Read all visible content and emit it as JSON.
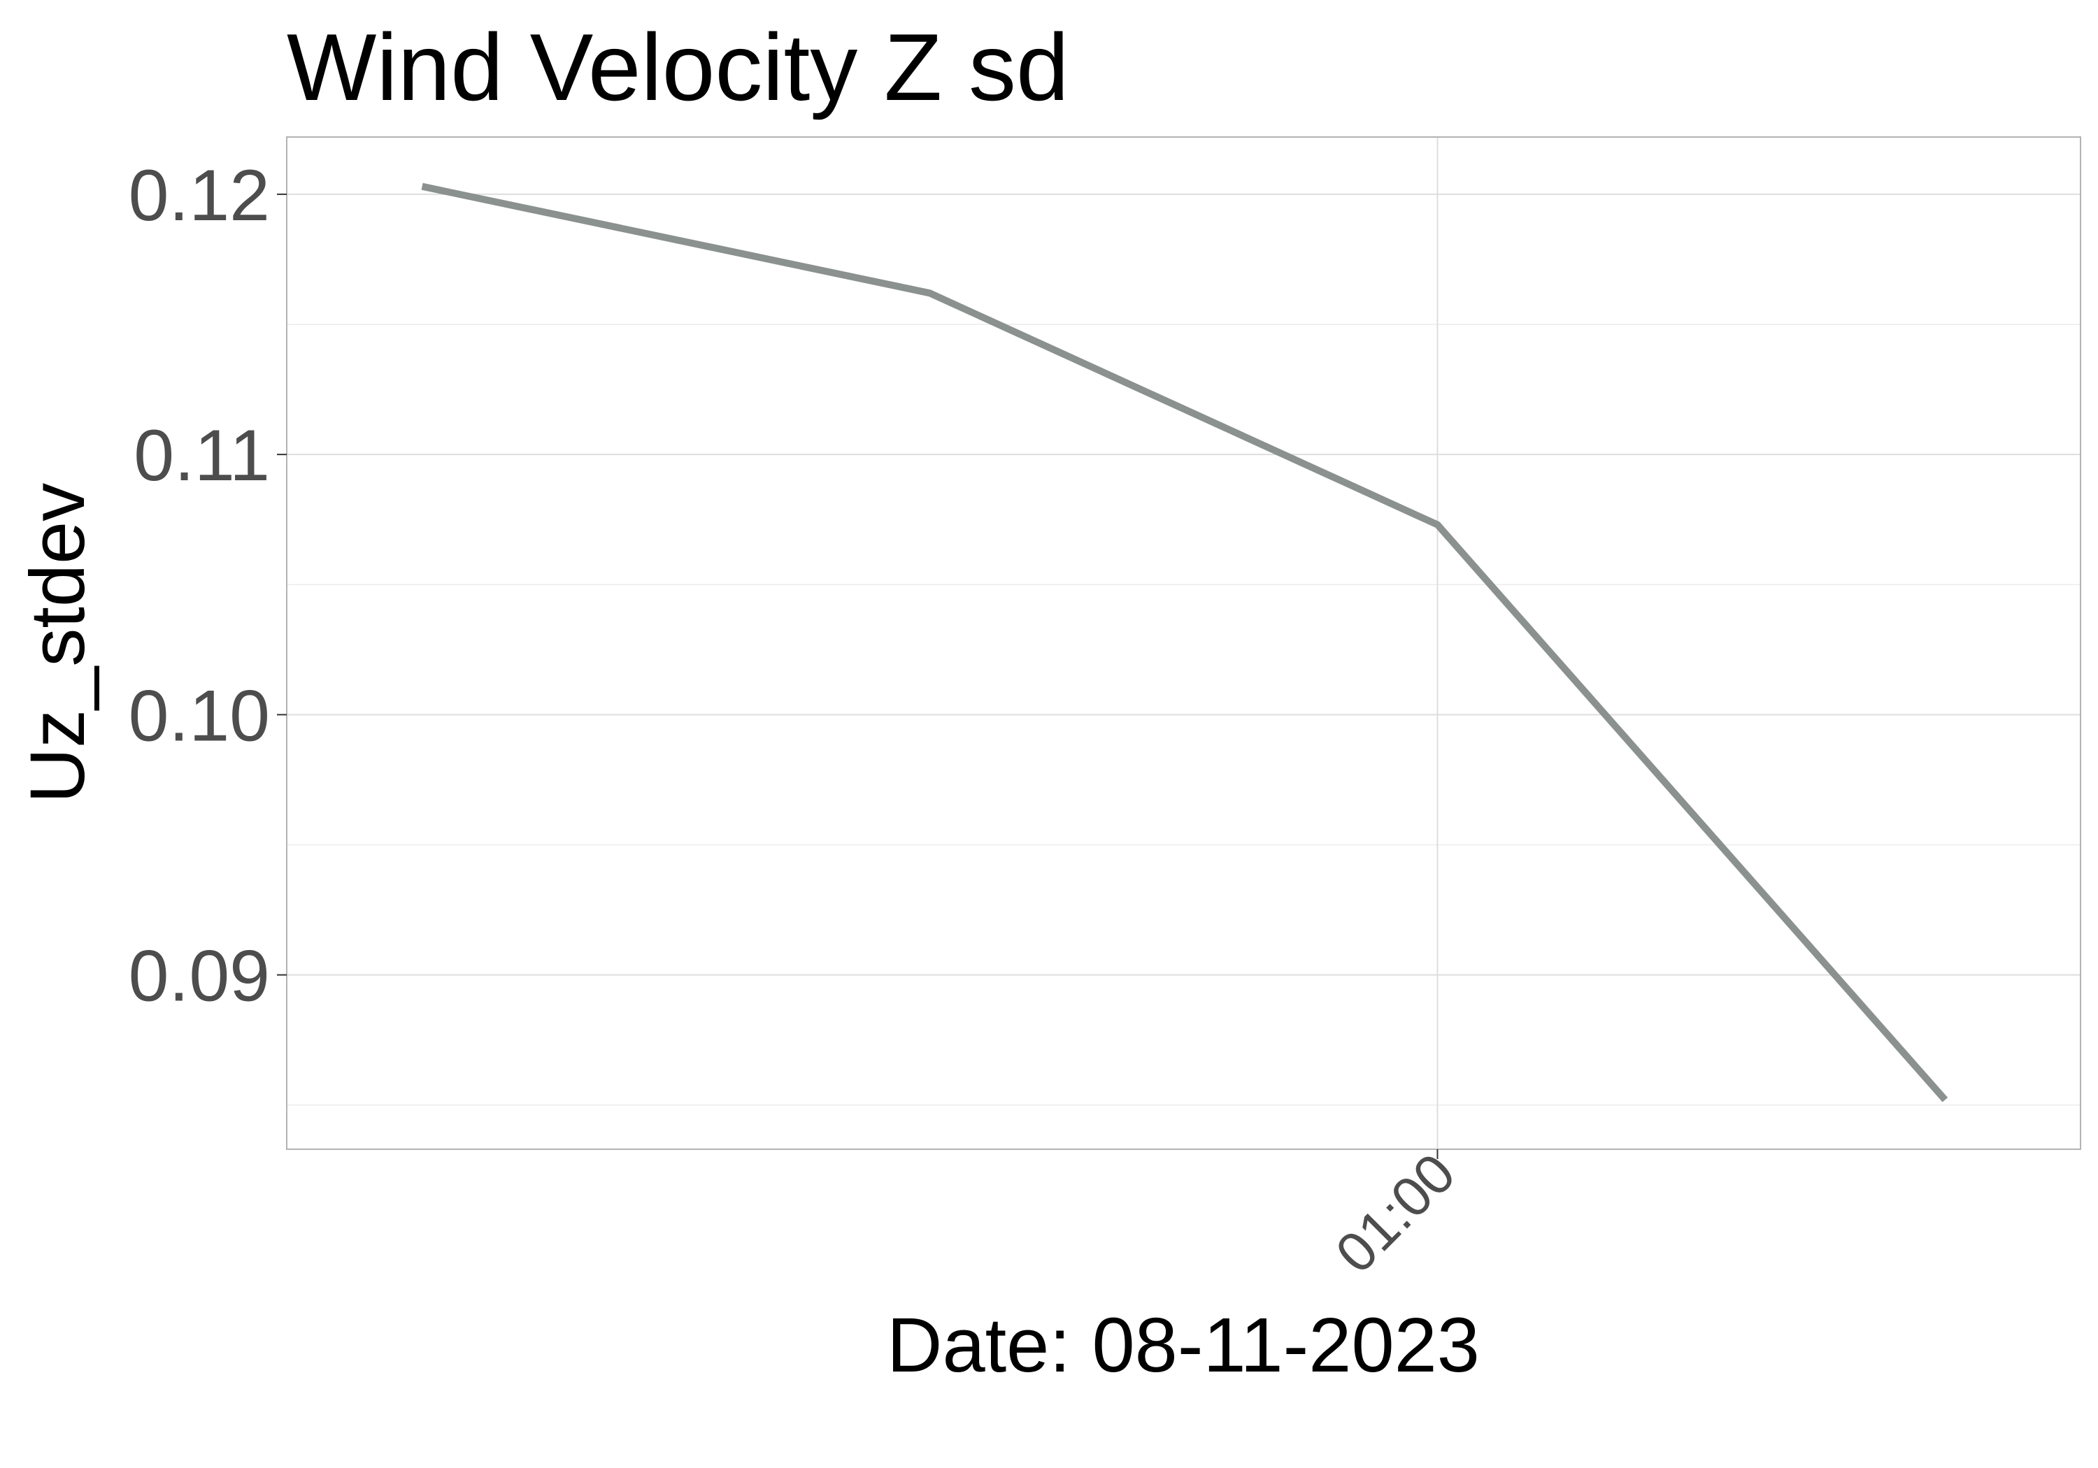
{
  "chart_data": {
    "type": "line",
    "title": "Wind Velocity Z sd",
    "xlabel": "Date: 08-11-2023",
    "ylabel": "Uz_stdev",
    "x": [
      "00:30",
      "00:45",
      "01:00",
      "01:15"
    ],
    "x_ticks": [
      "01:00"
    ],
    "xlim": [
      "00:26",
      "01:19"
    ],
    "series": [
      {
        "values": [
          0.1203,
          0.1162,
          0.1073,
          0.0852
        ],
        "color": "#8a918f"
      }
    ],
    "y_ticks": [
      0.09,
      0.1,
      0.11,
      0.12
    ],
    "y_tick_labels": [
      "0.09",
      "0.10",
      "0.11",
      "0.12"
    ],
    "ylim": [
      0.0833,
      0.1222
    ],
    "grid": true,
    "legend": "none"
  }
}
